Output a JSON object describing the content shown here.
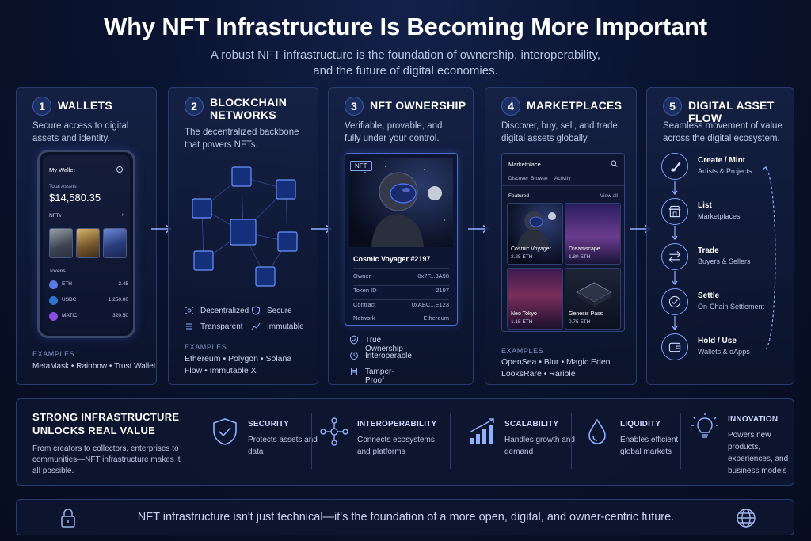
{
  "title": "Why NFT Infrastructure Is Becoming More Important",
  "subtitle_line1": "A robust NFT infrastructure is the foundation of ownership, interoperability,",
  "subtitle_line2": "and the future of digital economies.",
  "panels": {
    "wallets": {
      "num": "1",
      "title": "WALLETS",
      "desc1": "Secure access to digital",
      "desc2": "assets and identity.",
      "phone": {
        "header": "My Wallet",
        "total_label": "Total Assets",
        "total": "$14,580.35",
        "nfts_label": "NFTs",
        "tokens_label": "Tokens",
        "tokens": [
          {
            "name": "ETH",
            "value": "2.45"
          },
          {
            "name": "USDC",
            "value": "1,250.00"
          },
          {
            "name": "MATIC",
            "value": "320.50"
          }
        ]
      },
      "examples_label": "EXAMPLES",
      "examples": "MetaMask  •  Rainbow  •  Trust Wallet"
    },
    "blockchain": {
      "num": "2",
      "title1": "BLOCKCHAIN",
      "title2": "NETWORKS",
      "desc1": "The decentralized backbone",
      "desc2": "that powers NFTs.",
      "features": [
        "Decentralized",
        "Secure",
        "Transparent",
        "Immutable"
      ],
      "examples_label": "EXAMPLES",
      "examples1": "Ethereum  •  Polygon  •  Solana",
      "examples2": "Flow  •  Immutable X"
    },
    "ownership": {
      "num": "3",
      "title": "NFT OWNERSHIP",
      "desc1": "Verifiable, provable, and",
      "desc2": "fully under your control.",
      "card": {
        "badge": "NFT",
        "name": "Cosmic Voyager #2197",
        "rows": [
          {
            "k": "Owner",
            "v": "0x7F...3A98"
          },
          {
            "k": "Token ID",
            "v": "2197"
          },
          {
            "k": "Contract",
            "v": "0xABC...E123"
          },
          {
            "k": "Network",
            "v": "Ethereum"
          }
        ]
      },
      "features": [
        "True Ownership",
        "Interoperable",
        "Tamper-Proof"
      ]
    },
    "marketplaces": {
      "num": "4",
      "title": "MARKETPLACES",
      "desc1": "Discover, buy, sell, and trade",
      "desc2": "digital assets globally.",
      "ui": {
        "header": "Marketplace",
        "tabs": [
          "Discover",
          "Browse",
          "Activity"
        ],
        "featured": "Featured",
        "view_all": "View all",
        "items": [
          {
            "name": "Cosmic Voyager",
            "price": "2.25 ETH"
          },
          {
            "name": "Dreamscape",
            "price": "1.80 ETH"
          },
          {
            "name": "Neo Tokyo",
            "price": "1.15 ETH"
          },
          {
            "name": "Genesis Pass",
            "price": "0.75 ETH"
          }
        ]
      },
      "examples_label": "EXAMPLES",
      "examples1": "OpenSea  •  Blur  •  Magic Eden",
      "examples2": "LooksRare  •  Rarible"
    },
    "flow": {
      "num": "5",
      "title": "DIGITAL ASSET FLOW",
      "desc1": "Seamless movement of value",
      "desc2": "across the digital ecosystem.",
      "steps": [
        {
          "title": "Create / Mint",
          "sub": "Artists & Projects"
        },
        {
          "title": "List",
          "sub": "Marketplaces"
        },
        {
          "title": "Trade",
          "sub": "Buyers & Sellers"
        },
        {
          "title": "Settle",
          "sub": "On-Chain Settlement"
        },
        {
          "title": "Hold / Use",
          "sub": "Wallets & dApps"
        }
      ]
    }
  },
  "benefits": {
    "main1": "STRONG INFRASTRUCTURE",
    "main2": "UNLOCKS REAL VALUE",
    "desc": "From creators to collectors, enterprises to communities—NFT infrastructure makes it all possible.",
    "items": [
      {
        "title": "SECURITY",
        "sub": "Protects assets and data"
      },
      {
        "title": "INTEROPERABILITY",
        "sub": "Connects ecosystems and platforms"
      },
      {
        "title": "SCALABILITY",
        "sub": "Handles growth and demand"
      },
      {
        "title": "LIQUIDITY",
        "sub": "Enables efficient global markets"
      },
      {
        "title": "INNOVATION",
        "sub": "Powers new products, experiences, and business models"
      }
    ]
  },
  "footer": "NFT infrastructure isn't just technical—it's the foundation of a more open, digital, and owner-centric future.",
  "colors": {
    "accent": "#7ea0ff",
    "panel_border": "#2a3c6e",
    "background": "#0a1226"
  }
}
